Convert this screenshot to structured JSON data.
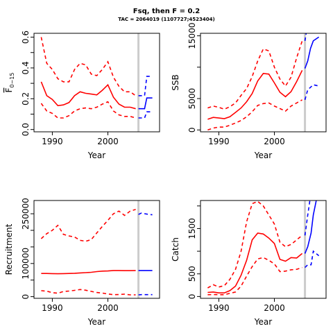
{
  "title": "Fsq, then F = 0.2",
  "subtitle": "TAC = 2064019 (1107727;4523404)",
  "colors": {
    "history": "#ff0000",
    "projection": "#0000ff",
    "marker": "#cccccc",
    "axis": "#000000"
  },
  "chart_data": [
    {
      "id": "fbar",
      "type": "line",
      "xlabel": "Year",
      "ylabel": "F-bar 0-15",
      "ylabel_main": "F",
      "ylabel_sub": "0−15",
      "xlim": [
        1986.7,
        2009.3
      ],
      "ylim": [
        -0.015,
        0.625
      ],
      "xticks": [
        1990,
        2000
      ],
      "yticks": [
        0.0,
        0.1,
        0.2,
        0.3,
        0.4,
        0.5,
        0.6
      ],
      "ytick_labels": [
        "0.0",
        "",
        "0.2",
        "",
        "0.4",
        "",
        "0.6"
      ],
      "marker_year": 2005.5,
      "history_x": [
        1988,
        1989,
        1990,
        1991,
        1992,
        1993,
        1994,
        1995,
        1996,
        1997,
        1998,
        1999,
        2000,
        2001,
        2002,
        2003,
        2004,
        2005
      ],
      "history_mid": [
        0.31,
        0.22,
        0.195,
        0.155,
        0.16,
        0.175,
        0.22,
        0.245,
        0.235,
        0.23,
        0.225,
        0.255,
        0.29,
        0.21,
        0.165,
        0.145,
        0.145,
        0.135
      ],
      "history_lo": [
        0.17,
        0.12,
        0.105,
        0.075,
        0.075,
        0.09,
        0.12,
        0.135,
        0.14,
        0.135,
        0.145,
        0.165,
        0.18,
        0.12,
        0.095,
        0.085,
        0.085,
        0.075
      ],
      "history_hi": [
        0.6,
        0.43,
        0.39,
        0.33,
        0.31,
        0.31,
        0.39,
        0.43,
        0.42,
        0.36,
        0.35,
        0.39,
        0.44,
        0.34,
        0.28,
        0.245,
        0.245,
        0.22
      ],
      "proj_x": [
        2005.5,
        2006,
        2006.6,
        2007,
        2008
      ],
      "proj_mid": [
        0.135,
        0.135,
        0.135,
        0.205,
        0.205
      ],
      "proj_lo": [
        0.075,
        0.075,
        0.075,
        0.115,
        0.115
      ],
      "proj_hi": [
        0.22,
        0.22,
        0.22,
        0.345,
        0.345
      ]
    },
    {
      "id": "ssb",
      "type": "line",
      "xlabel": "Year",
      "ylabel": "SSB",
      "xlim": [
        1986.7,
        2009.3
      ],
      "ylim": [
        -300,
        15400
      ],
      "xticks": [
        1990,
        2000
      ],
      "yticks": [
        0,
        5000,
        10000,
        15000
      ],
      "ytick_labels": [
        "0",
        "5000",
        "",
        "15000"
      ],
      "marker_year": 2005.5,
      "history_x": [
        1988,
        1989,
        1990,
        1991,
        1992,
        1993,
        1994,
        1995,
        1996,
        1997,
        1998,
        1999,
        2000,
        2001,
        2002,
        2003,
        2004,
        2005
      ],
      "history_mid": [
        1700,
        2000,
        1900,
        1800,
        2100,
        2800,
        3500,
        4500,
        5800,
        7800,
        9000,
        8900,
        7500,
        6000,
        5300,
        6100,
        7700,
        9500
      ],
      "history_lo": [
        0,
        300,
        450,
        450,
        750,
        1100,
        1500,
        2100,
        2900,
        3900,
        4200,
        4300,
        3800,
        3400,
        3000,
        3800,
        4300,
        4800
      ],
      "history_hi": [
        3500,
        3800,
        3600,
        3300,
        3700,
        4300,
        5500,
        6600,
        8500,
        11000,
        12900,
        12600,
        10000,
        8100,
        7000,
        8400,
        11500,
        14200
      ],
      "proj_x": [
        2005.5,
        2006,
        2006.5,
        2007,
        2008
      ],
      "proj_mid": [
        9800,
        11000,
        13000,
        14200,
        14800
      ],
      "proj_lo": [
        4800,
        6400,
        6800,
        7200,
        7000
      ],
      "proj_hi": [
        14200,
        17000,
        19000,
        20000,
        21000
      ]
    },
    {
      "id": "recruitment",
      "type": "line",
      "xlabel": "Year",
      "ylabel": "Recruitment",
      "xlim": [
        1986.7,
        2009.3
      ],
      "ylim": [
        -5000,
        290000
      ],
      "xticks": [
        1990,
        2000
      ],
      "yticks": [
        0,
        50000,
        100000,
        150000,
        200000,
        250000
      ],
      "ytick_labels": [
        "0",
        "",
        "100000",
        "",
        "",
        "250000"
      ],
      "marker_year": 2005.5,
      "history_x": [
        1988,
        1989,
        1990,
        1991,
        1992,
        1993,
        1994,
        1995,
        1996,
        1997,
        1998,
        1999,
        2000,
        2001,
        2002,
        2003,
        2004,
        2005
      ],
      "history_mid": [
        70000,
        70000,
        69500,
        69000,
        69500,
        70000,
        70500,
        71500,
        72500,
        73500,
        75500,
        77000,
        77500,
        79000,
        79000,
        78500,
        78500,
        79000
      ],
      "history_lo": [
        18000,
        16500,
        12000,
        10500,
        15500,
        17000,
        19000,
        21500,
        19500,
        16000,
        12500,
        11000,
        8000,
        6000,
        6500,
        7500,
        5500,
        5500
      ],
      "history_hi": [
        175000,
        190000,
        200000,
        215000,
        188000,
        183000,
        180000,
        170000,
        167000,
        172000,
        192000,
        212000,
        230000,
        250000,
        258000,
        245000,
        258000,
        263000
      ],
      "proj_x": [
        2005.5,
        2006,
        2007,
        2008
      ],
      "proj_mid": [
        79000,
        79000,
        79000,
        79000
      ],
      "proj_lo": [
        5500,
        6000,
        6000,
        6000
      ],
      "proj_hi": [
        248000,
        252000,
        249000,
        247000
      ]
    },
    {
      "id": "catch",
      "type": "line",
      "xlabel": "Year",
      "ylabel": "Catch",
      "xlim": [
        1986.7,
        2009.3
      ],
      "ylim": [
        -40,
        2120
      ],
      "xticks": [
        1990,
        2000
      ],
      "yticks": [
        0,
        500,
        1000,
        1500,
        2000
      ],
      "ytick_labels": [
        "0",
        "500",
        "",
        "1500",
        ""
      ],
      "marker_year": 2005.5,
      "history_x": [
        1988,
        1989,
        1990,
        1991,
        1992,
        1993,
        1994,
        1995,
        1996,
        1997,
        1998,
        1999,
        2000,
        2001,
        2002,
        2003,
        2004,
        2005
      ],
      "history_mid": [
        90,
        100,
        80,
        80,
        130,
        230,
        470,
        800,
        1250,
        1400,
        1380,
        1290,
        1170,
        820,
        780,
        860,
        850,
        950
      ],
      "history_lo": [
        40,
        45,
        40,
        40,
        70,
        100,
        230,
        450,
        660,
        830,
        860,
        800,
        720,
        550,
        560,
        590,
        600,
        640
      ],
      "history_hi": [
        190,
        260,
        210,
        240,
        380,
        600,
        1000,
        1650,
        2050,
        2100,
        2000,
        1800,
        1600,
        1200,
        1100,
        1150,
        1250,
        1350
      ],
      "proj_x": [
        2005.5,
        2006,
        2006.6,
        2007,
        2008
      ],
      "proj_mid": [
        950,
        1100,
        1400,
        1800,
        2400
      ],
      "proj_lo": [
        640,
        700,
        700,
        1000,
        900
      ],
      "proj_hi": [
        1350,
        1800,
        2300,
        2800,
        3500
      ]
    }
  ]
}
